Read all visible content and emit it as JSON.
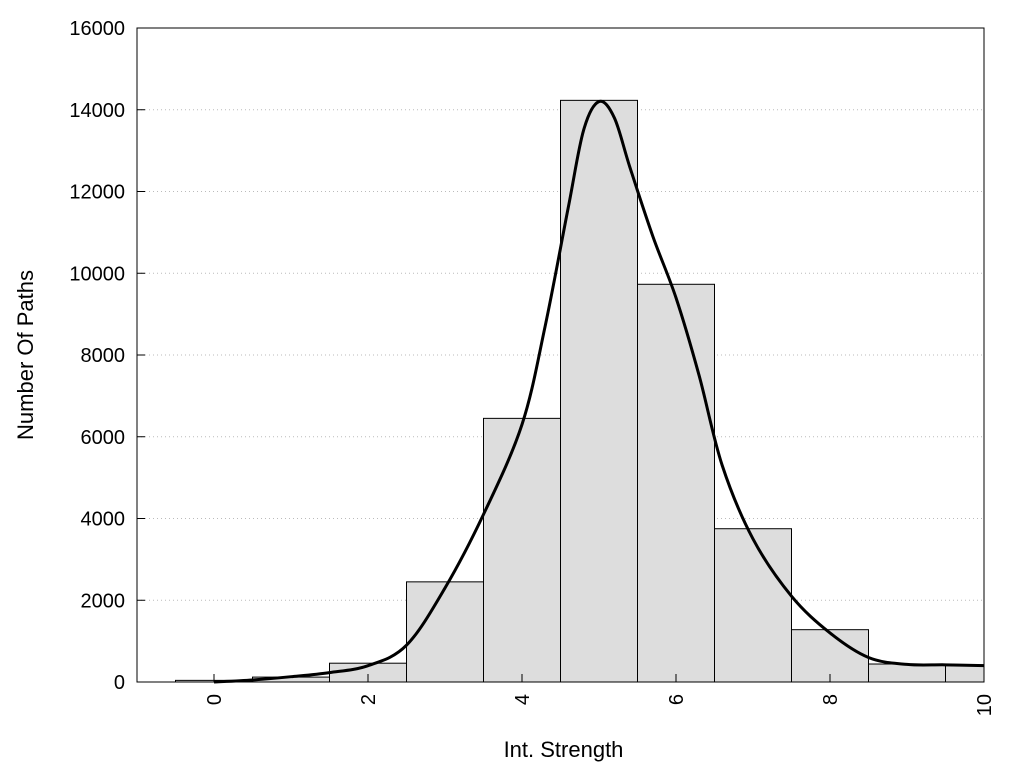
{
  "chart_data": {
    "type": "bar",
    "title": "",
    "xlabel": "Int. Strength",
    "ylabel": "Number Of Paths",
    "xlim": [
      -1,
      10
    ],
    "ylim": [
      0,
      16000
    ],
    "x_ticks": [
      0,
      2,
      4,
      6,
      8,
      10
    ],
    "y_ticks": [
      0,
      2000,
      4000,
      6000,
      8000,
      10000,
      12000,
      14000,
      16000
    ],
    "grid": "horizontal dotted",
    "bin_width": 1,
    "bins": [
      0,
      1,
      2,
      3,
      4,
      5,
      6,
      7,
      8,
      9,
      10
    ],
    "values": [
      40,
      120,
      460,
      2450,
      6450,
      14230,
      9730,
      3750,
      1280,
      440,
      420
    ],
    "bar_color": "#dddddd",
    "curve": {
      "x": [
        0,
        0.5,
        1,
        1.5,
        2,
        2.5,
        3,
        3.5,
        4,
        4.3,
        4.6,
        4.8,
        5,
        5.2,
        5.4,
        5.7,
        6,
        6.3,
        6.6,
        7,
        7.5,
        8,
        8.5,
        9,
        9.5,
        10
      ],
      "y": [
        0,
        50,
        130,
        230,
        400,
        900,
        2300,
        4100,
        6300,
        8700,
        11600,
        13500,
        14200,
        13800,
        12600,
        10900,
        9400,
        7500,
        5300,
        3500,
        2100,
        1200,
        600,
        430,
        420,
        400
      ]
    }
  }
}
